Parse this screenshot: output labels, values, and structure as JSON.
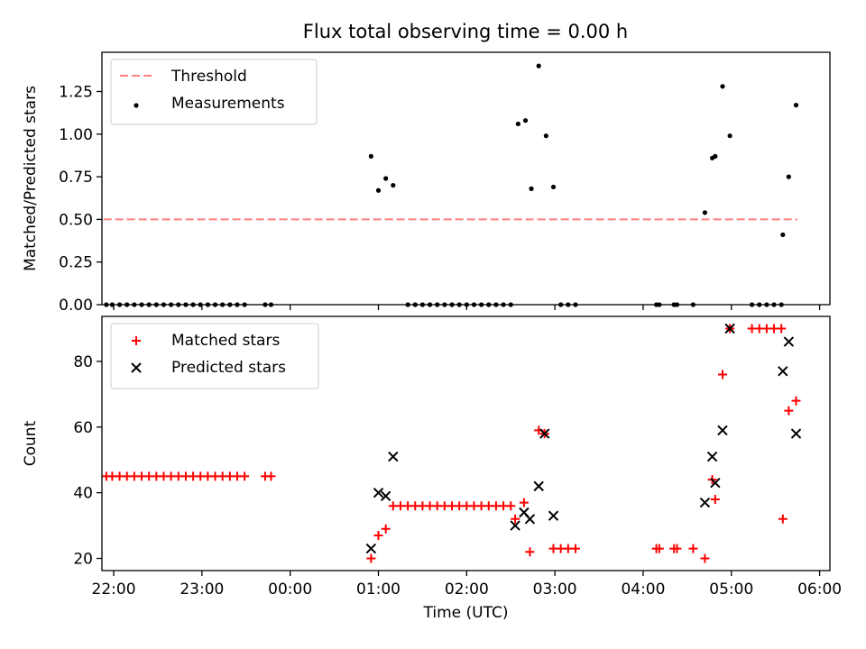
{
  "chart_data": [
    {
      "type": "scatter",
      "title": "Flux total observing time = 0.00 h",
      "xlabel": "",
      "ylabel": "Matched/Predicted stars",
      "xlim": [
        "21:52",
        "06:07"
      ],
      "ylim": [
        0,
        1.48
      ],
      "yticks": [
        0.0,
        0.25,
        0.5,
        0.75,
        1.0,
        1.25
      ],
      "ytick_labels": [
        "0.00",
        "0.25",
        "0.50",
        "0.75",
        "1.00",
        "1.25"
      ],
      "grid": false,
      "legend_position": "top-left",
      "threshold": {
        "name": "Threshold",
        "value": 0.5,
        "x_range": [
          "21:53",
          "05:45"
        ],
        "color": "#ff8080",
        "style": "dashed"
      },
      "series": [
        {
          "name": "Measurements",
          "color": "#000000",
          "marker": "dot",
          "points": [
            [
              "21:55",
              0
            ],
            [
              "21:59",
              0
            ],
            [
              "22:04",
              0
            ],
            [
              "22:09",
              0
            ],
            [
              "22:14",
              0
            ],
            [
              "22:19",
              0
            ],
            [
              "22:24",
              0
            ],
            [
              "22:29",
              0
            ],
            [
              "22:34",
              0
            ],
            [
              "22:39",
              0
            ],
            [
              "22:44",
              0
            ],
            [
              "22:49",
              0
            ],
            [
              "22:54",
              0
            ],
            [
              "22:59",
              0
            ],
            [
              "23:04",
              0
            ],
            [
              "23:09",
              0
            ],
            [
              "23:14",
              0
            ],
            [
              "23:19",
              0
            ],
            [
              "23:24",
              0
            ],
            [
              "23:29",
              0
            ],
            [
              "23:43",
              0
            ],
            [
              "23:47",
              0
            ],
            [
              "00:55",
              0.87
            ],
            [
              "01:00",
              0.67
            ],
            [
              "01:05",
              0.74
            ],
            [
              "01:10",
              0.7
            ],
            [
              "01:20",
              0
            ],
            [
              "01:25",
              0
            ],
            [
              "01:30",
              0
            ],
            [
              "01:35",
              0
            ],
            [
              "01:40",
              0
            ],
            [
              "01:45",
              0
            ],
            [
              "01:50",
              0
            ],
            [
              "01:55",
              0
            ],
            [
              "02:00",
              0
            ],
            [
              "02:05",
              0
            ],
            [
              "02:10",
              0
            ],
            [
              "02:15",
              0
            ],
            [
              "02:20",
              0
            ],
            [
              "02:25",
              0
            ],
            [
              "02:30",
              0
            ],
            [
              "02:35",
              1.06
            ],
            [
              "02:40",
              1.08
            ],
            [
              "02:44",
              0.68
            ],
            [
              "02:49",
              1.4
            ],
            [
              "02:54",
              0.99
            ],
            [
              "02:59",
              0.69
            ],
            [
              "03:04",
              0
            ],
            [
              "03:09",
              0
            ],
            [
              "03:14",
              0
            ],
            [
              "04:09",
              0
            ],
            [
              "04:11",
              0
            ],
            [
              "04:21",
              0
            ],
            [
              "04:23",
              0
            ],
            [
              "04:34",
              0
            ],
            [
              "04:42",
              0.54
            ],
            [
              "04:47",
              0.86
            ],
            [
              "04:49",
              0.87
            ],
            [
              "04:54",
              1.28
            ],
            [
              "04:59",
              0.99
            ],
            [
              "05:14",
              0
            ],
            [
              "05:19",
              0
            ],
            [
              "05:24",
              0
            ],
            [
              "05:29",
              0
            ],
            [
              "05:34",
              0
            ],
            [
              "05:35",
              0.41
            ],
            [
              "05:39",
              0.75
            ],
            [
              "05:44",
              1.17
            ]
          ]
        }
      ]
    },
    {
      "type": "scatter",
      "title": "",
      "xlabel": "Time (UTC)",
      "ylabel": "Count",
      "xlim": [
        "21:52",
        "06:07"
      ],
      "ylim": [
        16.3,
        93.7
      ],
      "yticks": [
        20,
        40,
        60,
        80
      ],
      "ytick_labels": [
        "20",
        "40",
        "60",
        "80"
      ],
      "xticks": [
        "22:00",
        "23:00",
        "00:00",
        "01:00",
        "02:00",
        "03:00",
        "04:00",
        "05:00",
        "06:00"
      ],
      "grid": false,
      "legend_position": "top-left",
      "series": [
        {
          "name": "Matched stars",
          "color": "#ff0000",
          "marker": "plus",
          "points": [
            [
              "21:55",
              45
            ],
            [
              "21:59",
              45
            ],
            [
              "22:04",
              45
            ],
            [
              "22:09",
              45
            ],
            [
              "22:14",
              45
            ],
            [
              "22:19",
              45
            ],
            [
              "22:24",
              45
            ],
            [
              "22:29",
              45
            ],
            [
              "22:34",
              45
            ],
            [
              "22:39",
              45
            ],
            [
              "22:44",
              45
            ],
            [
              "22:49",
              45
            ],
            [
              "22:54",
              45
            ],
            [
              "22:59",
              45
            ],
            [
              "23:04",
              45
            ],
            [
              "23:09",
              45
            ],
            [
              "23:14",
              45
            ],
            [
              "23:19",
              45
            ],
            [
              "23:24",
              45
            ],
            [
              "23:29",
              45
            ],
            [
              "23:43",
              45
            ],
            [
              "23:47",
              45
            ],
            [
              "00:55",
              20
            ],
            [
              "01:00",
              27
            ],
            [
              "01:05",
              29
            ],
            [
              "01:10",
              36
            ],
            [
              "01:15",
              36
            ],
            [
              "01:20",
              36
            ],
            [
              "01:25",
              36
            ],
            [
              "01:30",
              36
            ],
            [
              "01:35",
              36
            ],
            [
              "01:40",
              36
            ],
            [
              "01:45",
              36
            ],
            [
              "01:50",
              36
            ],
            [
              "01:55",
              36
            ],
            [
              "02:00",
              36
            ],
            [
              "02:05",
              36
            ],
            [
              "02:10",
              36
            ],
            [
              "02:15",
              36
            ],
            [
              "02:20",
              36
            ],
            [
              "02:25",
              36
            ],
            [
              "02:30",
              36
            ],
            [
              "02:33",
              32
            ],
            [
              "02:39",
              37
            ],
            [
              "02:43",
              22
            ],
            [
              "02:49",
              59
            ],
            [
              "02:53",
              58
            ],
            [
              "02:59",
              23
            ],
            [
              "03:04",
              23
            ],
            [
              "03:09",
              23
            ],
            [
              "03:14",
              23
            ],
            [
              "04:09",
              23
            ],
            [
              "04:11",
              23
            ],
            [
              "04:21",
              23
            ],
            [
              "04:23",
              23
            ],
            [
              "04:34",
              23
            ],
            [
              "04:42",
              20
            ],
            [
              "04:47",
              44
            ],
            [
              "04:49",
              38
            ],
            [
              "04:54",
              76
            ],
            [
              "04:59",
              90
            ],
            [
              "05:14",
              90
            ],
            [
              "05:19",
              90
            ],
            [
              "05:24",
              90
            ],
            [
              "05:29",
              90
            ],
            [
              "05:34",
              90
            ],
            [
              "05:35",
              32
            ],
            [
              "05:39",
              65
            ],
            [
              "05:44",
              68
            ]
          ]
        },
        {
          "name": "Predicted stars",
          "color": "#000000",
          "marker": "x",
          "points": [
            [
              "00:55",
              23
            ],
            [
              "01:00",
              40
            ],
            [
              "01:05",
              39
            ],
            [
              "01:10",
              51
            ],
            [
              "02:33",
              30
            ],
            [
              "02:39",
              34
            ],
            [
              "02:43",
              32
            ],
            [
              "02:49",
              42
            ],
            [
              "02:53",
              58
            ],
            [
              "02:59",
              33
            ],
            [
              "04:42",
              37
            ],
            [
              "04:47",
              51
            ],
            [
              "04:49",
              43
            ],
            [
              "04:54",
              59
            ],
            [
              "04:59",
              90
            ],
            [
              "05:35",
              77
            ],
            [
              "05:39",
              86
            ],
            [
              "05:44",
              58
            ]
          ]
        }
      ]
    }
  ]
}
